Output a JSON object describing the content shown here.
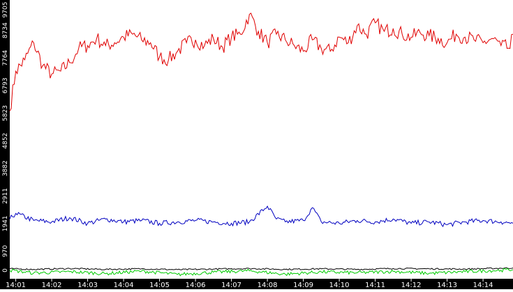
{
  "colors": {
    "axis_bg": "#000000",
    "tick_text": "#ffffff",
    "plot_bg": "#ffffff",
    "red": "#e00000",
    "blue": "#0000c0",
    "green": "#00cc00",
    "black": "#000000"
  },
  "chart_data": {
    "type": "line",
    "title": "",
    "xlabel": "",
    "ylabel": "",
    "ylim": [
      0,
      9705
    ],
    "y_ticks": [
      "0",
      "970",
      "1941",
      "2911",
      "3882",
      "4852",
      "5823",
      "6793",
      "7764",
      "8734",
      "9705"
    ],
    "x_range": [
      "14:00:50",
      "14:14:50"
    ],
    "x_ticks": [
      "14:01",
      "14:02",
      "14:03",
      "14:04",
      "14:05",
      "14:06",
      "14:07",
      "14:08",
      "14:09",
      "14:10",
      "14:11",
      "14:12",
      "14:13",
      "14:14"
    ],
    "grid": false,
    "legend": "none",
    "series": [
      {
        "color": "red",
        "x": [
          "14:00:50",
          "14:01:00",
          "14:01:15",
          "14:01:30",
          "14:01:45",
          "14:02:00",
          "14:02:15",
          "14:02:30",
          "14:02:45",
          "14:03:00",
          "14:03:15",
          "14:03:30",
          "14:03:45",
          "14:04:00",
          "14:04:15",
          "14:04:30",
          "14:04:45",
          "14:05:00",
          "14:05:15",
          "14:05:30",
          "14:05:45",
          "14:06:00",
          "14:06:15",
          "14:06:30",
          "14:06:45",
          "14:07:00",
          "14:07:15",
          "14:07:30",
          "14:07:45",
          "14:08:00",
          "14:08:15",
          "14:08:30",
          "14:08:45",
          "14:09:00",
          "14:09:15",
          "14:09:30",
          "14:09:45",
          "14:10:00",
          "14:10:15",
          "14:10:30",
          "14:10:45",
          "14:11:00",
          "14:11:15",
          "14:11:30",
          "14:11:45",
          "14:12:00",
          "14:12:15",
          "14:12:30",
          "14:12:45",
          "14:13:00",
          "14:13:15",
          "14:13:30",
          "14:13:45",
          "14:14:00",
          "14:14:15",
          "14:14:30",
          "14:14:45",
          "14:14:50"
        ],
        "values": [
          5900,
          7300,
          7700,
          8300,
          7500,
          7200,
          7300,
          7600,
          8100,
          8200,
          8450,
          8200,
          8300,
          8500,
          8600,
          8400,
          8300,
          7800,
          7700,
          8000,
          8300,
          8400,
          8200,
          8450,
          8150,
          8500,
          8600,
          9300,
          8700,
          8300,
          8600,
          8400,
          8200,
          8000,
          8400,
          8100,
          8000,
          8500,
          8300,
          8900,
          8600,
          9000,
          8700,
          8800,
          8600,
          8500,
          8650,
          8550,
          8450,
          8300,
          8600,
          8500,
          8400,
          8300,
          8450,
          8200,
          8100,
          8600
        ]
      },
      {
        "color": "blue",
        "x": [
          "14:00:50",
          "14:01:00",
          "14:01:30",
          "14:02:00",
          "14:02:30",
          "14:03:00",
          "14:03:30",
          "14:04:00",
          "14:04:30",
          "14:05:00",
          "14:05:30",
          "14:06:00",
          "14:06:30",
          "14:07:00",
          "14:07:30",
          "14:08:00",
          "14:08:15",
          "14:08:30",
          "14:09:00",
          "14:09:15",
          "14:09:30",
          "14:10:00",
          "14:10:30",
          "14:11:00",
          "14:11:30",
          "14:12:00",
          "14:12:30",
          "14:13:00",
          "14:13:30",
          "14:14:00",
          "14:14:30",
          "14:14:50"
        ],
        "values": [
          2100,
          2300,
          2050,
          2000,
          2150,
          1950,
          2100,
          2000,
          2050,
          1950,
          2000,
          2050,
          2000,
          1950,
          2000,
          2550,
          2100,
          2000,
          2050,
          2500,
          2000,
          1950,
          2050,
          2000,
          2100,
          1950,
          2000,
          1900,
          2000,
          2050,
          2000,
          1950
        ]
      },
      {
        "color": "black",
        "x": [
          "14:00:50",
          "14:01:30",
          "14:02:30",
          "14:03:30",
          "14:04:30",
          "14:05:30",
          "14:06:30",
          "14:07:30",
          "14:08:30",
          "14:09:30",
          "14:10:30",
          "14:11:30",
          "14:12:30",
          "14:13:30",
          "14:14:30",
          "14:14:50"
        ],
        "values": [
          350,
          330,
          360,
          330,
          350,
          320,
          340,
          360,
          330,
          350,
          330,
          360,
          350,
          340,
          370,
          380
        ]
      },
      {
        "color": "green",
        "x": [
          "14:00:50",
          "14:01:30",
          "14:02:30",
          "14:03:30",
          "14:04:30",
          "14:05:30",
          "14:06:30",
          "14:07:30",
          "14:08:30",
          "14:09:30",
          "14:10:30",
          "14:11:30",
          "14:12:30",
          "14:13:30",
          "14:14:30",
          "14:14:50"
        ],
        "values": [
          300,
          200,
          250,
          180,
          270,
          150,
          230,
          280,
          160,
          240,
          210,
          260,
          190,
          250,
          300,
          320
        ]
      }
    ]
  }
}
